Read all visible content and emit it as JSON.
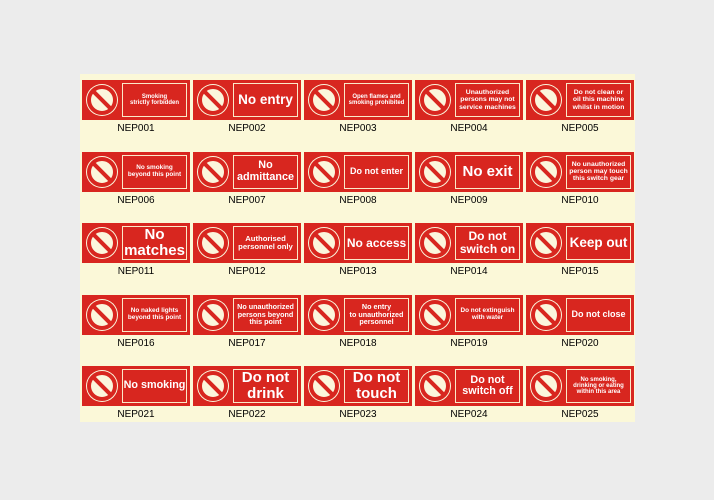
{
  "signs": [
    {
      "text": [
        "Smoking",
        "strictly forbidden"
      ],
      "code": "NEP001"
    },
    {
      "text": [
        "No entry"
      ],
      "code": "NEP002"
    },
    {
      "text": [
        "Open flames and",
        "smoking prohibited"
      ],
      "code": "NEP003"
    },
    {
      "text": [
        "Unauthorized",
        "persons may not",
        "service machines"
      ],
      "code": "NEP004"
    },
    {
      "text": [
        "Do not clean or",
        "oil this machine",
        "whilst in motion"
      ],
      "code": "NEP005"
    },
    {
      "text": [
        "No smoking",
        "beyond this point"
      ],
      "code": "NEP006"
    },
    {
      "text": [
        "No",
        "admittance"
      ],
      "code": "NEP007"
    },
    {
      "text": [
        "Do not enter"
      ],
      "code": "NEP008"
    },
    {
      "text": [
        "No exit"
      ],
      "code": "NEP009"
    },
    {
      "text": [
        "No unauthorized",
        "person may touch",
        "this switch gear"
      ],
      "code": "NEP010"
    },
    {
      "text": [
        "No",
        "matches"
      ],
      "code": "NEP011"
    },
    {
      "text": [
        "Authorised",
        "personnel only"
      ],
      "code": "NEP012"
    },
    {
      "text": [
        "No access"
      ],
      "code": "NEP013"
    },
    {
      "text": [
        "Do not",
        "switch on"
      ],
      "code": "NEP014"
    },
    {
      "text": [
        "Keep out"
      ],
      "code": "NEP015"
    },
    {
      "text": [
        "No naked lights",
        "beyond this point"
      ],
      "code": "NEP016"
    },
    {
      "text": [
        "No unauthorized",
        "persons beyond",
        "this point"
      ],
      "code": "NEP017"
    },
    {
      "text": [
        "No entry",
        "to unauthorized",
        "personnel"
      ],
      "code": "NEP018"
    },
    {
      "text": [
        "Do not extinguish",
        "with water"
      ],
      "code": "NEP019"
    },
    {
      "text": [
        "Do not close"
      ],
      "code": "NEP020"
    },
    {
      "text": [
        "No smoking"
      ],
      "code": "NEP021"
    },
    {
      "text": [
        "Do not",
        "drink"
      ],
      "code": "NEP022"
    },
    {
      "text": [
        "Do not",
        "touch"
      ],
      "code": "NEP023"
    },
    {
      "text": [
        "Do not",
        "switch off"
      ],
      "code": "NEP024"
    },
    {
      "text": [
        "No smoking,",
        "drinking or eating",
        "within this area"
      ],
      "code": "NEP025"
    }
  ]
}
